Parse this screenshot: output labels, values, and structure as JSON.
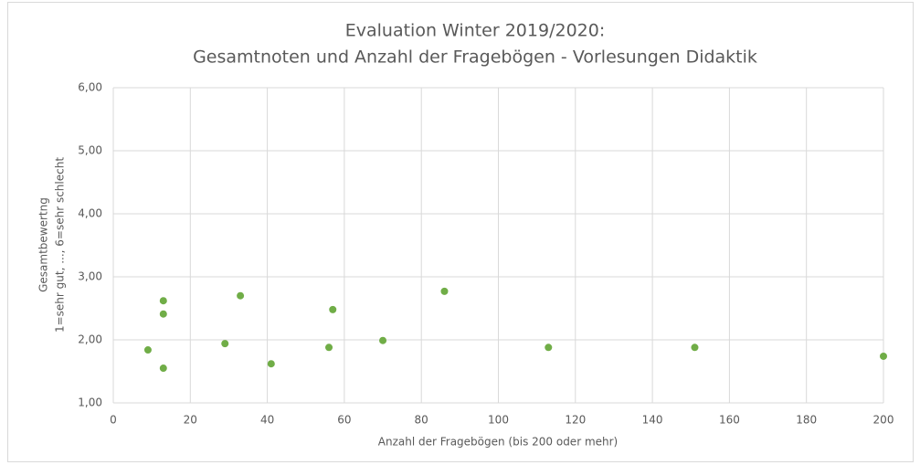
{
  "chart_data": {
    "type": "scatter",
    "title": [
      "Evaluation Winter 2019/2020:",
      "Gesamtnoten und Anzahl der Fragebögen - Vorlesungen Didaktik"
    ],
    "xlabel": "Anzahl der Fragebögen (bis 200 oder mehr)",
    "ylabel": [
      "Gesamtbewertng",
      "1=sehr gut, ..., 6=sehr schlecht"
    ],
    "x": [
      9,
      13,
      13,
      13,
      29,
      33,
      41,
      56,
      57,
      70,
      86,
      113,
      151,
      200
    ],
    "values": [
      1.84,
      2.62,
      2.41,
      1.55,
      1.94,
      2.7,
      1.62,
      1.88,
      2.48,
      1.99,
      2.77,
      1.88,
      1.88,
      1.74
    ],
    "color": "#70ad47",
    "xlim": [
      0,
      200
    ],
    "xticks": [
      0,
      20,
      40,
      60,
      80,
      100,
      120,
      140,
      160,
      180,
      200
    ],
    "ylim": [
      1,
      6
    ],
    "yticks": [
      {
        "value": 1,
        "label": "1,00"
      },
      {
        "value": 2,
        "label": "2,00"
      },
      {
        "value": 3,
        "label": "3,00"
      },
      {
        "value": 4,
        "label": "4,00"
      },
      {
        "value": 5,
        "label": "5,00"
      },
      {
        "value": 6,
        "label": "6,00"
      }
    ],
    "grid": true
  }
}
